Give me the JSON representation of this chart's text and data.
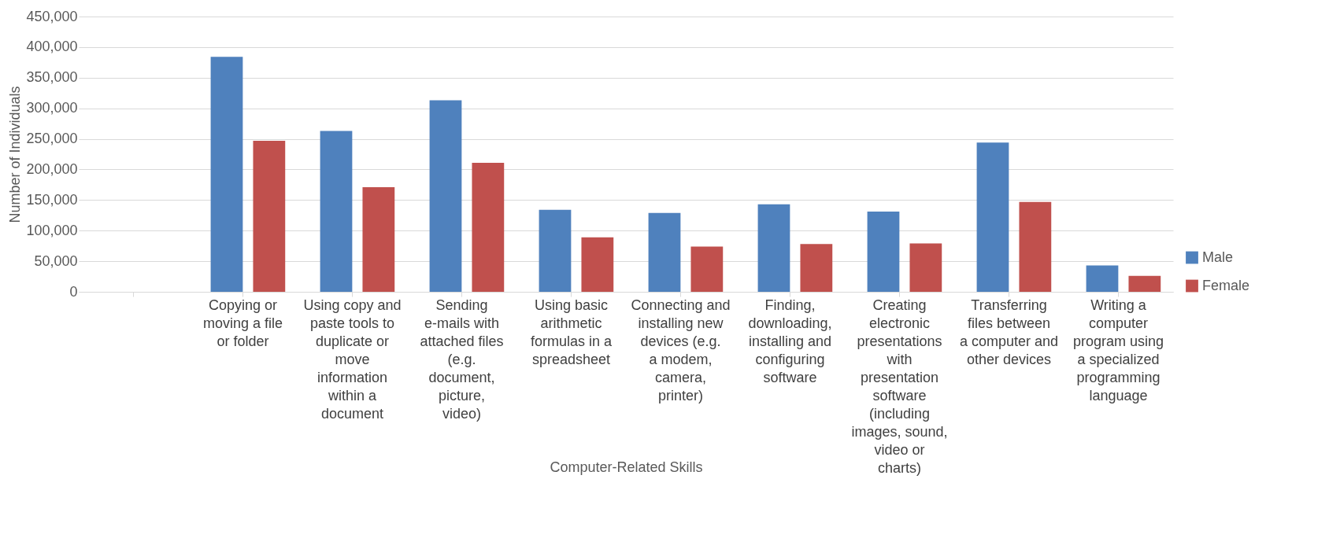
{
  "chart_data": {
    "type": "bar",
    "xlabel": "Computer-Related Skills",
    "ylabel": "Number of Individuals",
    "categories": [
      null,
      "Copying or moving a file or folder",
      "Using copy and paste tools to duplicate or move information within a document",
      "Sending e-mails with attached files (e.g. document, picture, video)",
      "Using basic arithmetic formulas in a spreadsheet",
      "Connecting and installing new devices (e.g. a modem, camera, printer)",
      "Finding, downloading, installing and configuring software",
      "Creating electronic presentations with presentation software (including images, sound, video or charts)",
      "Transferring files between a computer and other devices",
      "Writing a computer program using a specialized programming language"
    ],
    "series": [
      {
        "name": "Male",
        "color": "#4f81bd",
        "values": [
          null,
          384000,
          263000,
          313000,
          134000,
          129000,
          143000,
          131000,
          244000,
          43000
        ]
      },
      {
        "name": "Female",
        "color": "#c0504d",
        "values": [
          null,
          247000,
          171000,
          211000,
          89000,
          74000,
          78000,
          79000,
          147000,
          26000
        ]
      }
    ],
    "ylim": [
      0,
      450000
    ],
    "yticks": [
      0,
      {
        "value": 50000,
        "label": "50,000"
      },
      {
        "value": 100000,
        "label": "100,000"
      },
      {
        "value": 150000,
        "label": "150,000"
      },
      {
        "value": 200000,
        "label": "200,000"
      },
      {
        "value": 250000,
        "label": "250,000"
      },
      {
        "value": 300000,
        "label": "300,000"
      },
      {
        "value": 350000,
        "label": "350,000"
      },
      {
        "value": 400000,
        "label": "400,000"
      },
      {
        "value": 450000,
        "label": "450,000"
      }
    ],
    "grid": "y",
    "legend": "right"
  }
}
